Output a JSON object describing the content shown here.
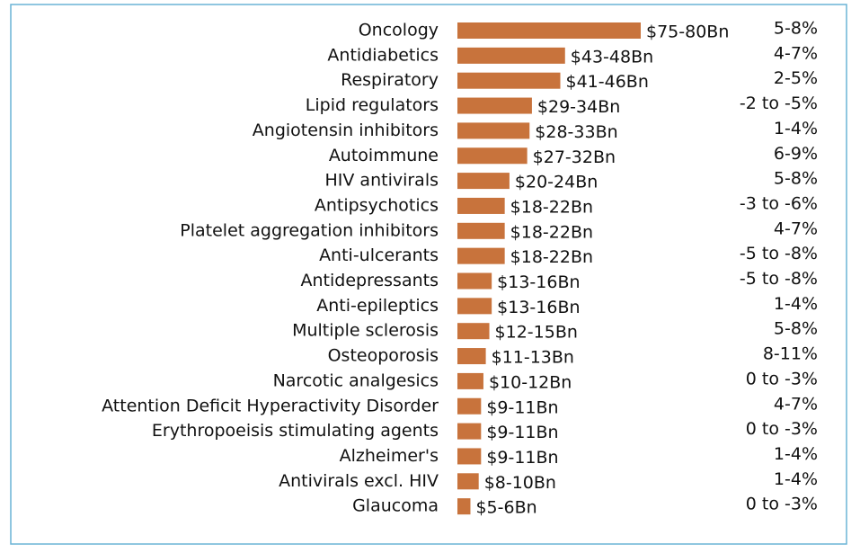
{
  "chart_data": {
    "type": "bar",
    "orientation": "horizontal",
    "categories": [
      "Oncology",
      "Antidiabetics",
      "Respiratory",
      "Lipid regulators",
      "Angiotensin inhibitors",
      "Autoimmune",
      "HIV antivirals",
      "Antipsychotics",
      "Platelet aggregation inhibitors",
      "Anti-ulcerants",
      "Antidepressants",
      "Anti-epileptics",
      "Multiple sclerosis",
      "Osteoporosis",
      "Narcotic analgesics",
      "Attention Deficit Hyperactivity Disorder",
      "Erythropoeisis stimulating agents",
      "Alzheimer's",
      "Antivirals excl. HIV",
      "Glaucoma"
    ],
    "series": [
      {
        "color": "#c8733c",
        "values": [
          77.5,
          45.5,
          43.5,
          31.5,
          30.5,
          29.5,
          22,
          20,
          20,
          20,
          14.5,
          14.5,
          13.5,
          12,
          11,
          10,
          10,
          10,
          9,
          5.5
        ],
        "value_labels": [
          "$75-80Bn",
          "$43-48Bn",
          "$41-46Bn",
          "$29-34Bn",
          "$28-33Bn",
          "$27-32Bn",
          "$20-24Bn",
          "$18-22Bn",
          "$18-22Bn",
          "$18-22Bn",
          "$13-16Bn",
          "$13-16Bn",
          "$12-15Bn",
          "$11-13Bn",
          "$10-12Bn",
          "$9-11Bn",
          "$9-11Bn",
          "$9-11Bn",
          "$8-10Bn",
          "$5-6Bn"
        ]
      }
    ],
    "growth": [
      "5-8%",
      "4-7%",
      "2-5%",
      "-2 to -5%",
      "1-4%",
      "6-9%",
      "5-8%",
      "-3 to -6%",
      "4-7%",
      "-5 to -8%",
      "-5 to -8%",
      "1-4%",
      "5-8%",
      "8-11%",
      "0 to -3%",
      "4-7%",
      "0 to -3%",
      "1-4%",
      "1-4%",
      "0 to -3%"
    ]
  }
}
